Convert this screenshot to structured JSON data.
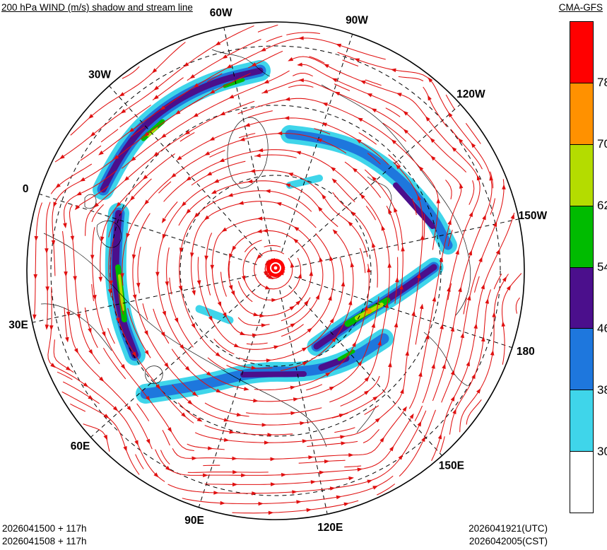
{
  "header": {
    "title": "200 hPa WIND (m/s) shadow and stream line",
    "model": "CMA-GFS"
  },
  "footer": {
    "init_utc": "2026041500 + 117h",
    "init_cst": "2026041508 + 117h",
    "valid_utc": "2026041921(UTC)",
    "valid_cst": "2026042005(CST)"
  },
  "chart_data": {
    "type": "heatmap",
    "map_type": "streamlines + shaded wind-speed contours on a polar map",
    "title": "200 hPa WIND (m/s) shadow and stream line",
    "model": "CMA-GFS",
    "level": "200 hPa",
    "variable": "wind speed",
    "units": "m/s",
    "projection": "north polar stereographic",
    "longitude_labels": [
      "60W",
      "90W",
      "120W",
      "150W",
      "180",
      "150E",
      "120E",
      "90E",
      "60E",
      "30E",
      "0",
      "30W"
    ],
    "streamline_color": "#e01010",
    "shading_levels": [
      30,
      38,
      46,
      54,
      62,
      70,
      78
    ],
    "colorbar": {
      "units": "m/s",
      "tick_labels": [
        "78",
        "70",
        "62",
        "54",
        "46",
        "38",
        "30"
      ],
      "segments_top_to_bottom": [
        {
          "label": ">78",
          "color": "#ff0000"
        },
        {
          "label": "70-78",
          "color": "#ff9100"
        },
        {
          "label": "62-70",
          "color": "#b4dc00"
        },
        {
          "label": "54-62",
          "color": "#00bb00"
        },
        {
          "label": "46-54",
          "color": "#4b0f8c"
        },
        {
          "label": "38-46",
          "color": "#1e77dd"
        },
        {
          "label": "30-38",
          "color": "#3fd5ea"
        },
        {
          "label": "<30",
          "color": "#ffffff"
        }
      ]
    },
    "init_times": [
      "2026041500 + 117h",
      "2026041508 + 117h"
    ],
    "valid_times": [
      "2026041921(UTC)",
      "2026042005(CST)"
    ],
    "jet_streaks": [
      {
        "region": "North Atlantic near Greenland/Iceland (30W-60W)",
        "max_band_m_s": "54-62"
      },
      {
        "region": "Eastern Europe (around 30E)",
        "max_band_m_s": "54-70"
      },
      {
        "region": "Northern North America (60W-150W)",
        "max_band_m_s": "46-54"
      },
      {
        "region": "East Asia / Northwest Pacific (120E-150E)",
        "max_band_m_s": "70-78"
      },
      {
        "region": "Central/South Asia (60E-120E)",
        "max_band_m_s": "46-62"
      },
      {
        "region": "Polar vortex core at the pole",
        "max_band_m_s": ">78"
      }
    ]
  }
}
